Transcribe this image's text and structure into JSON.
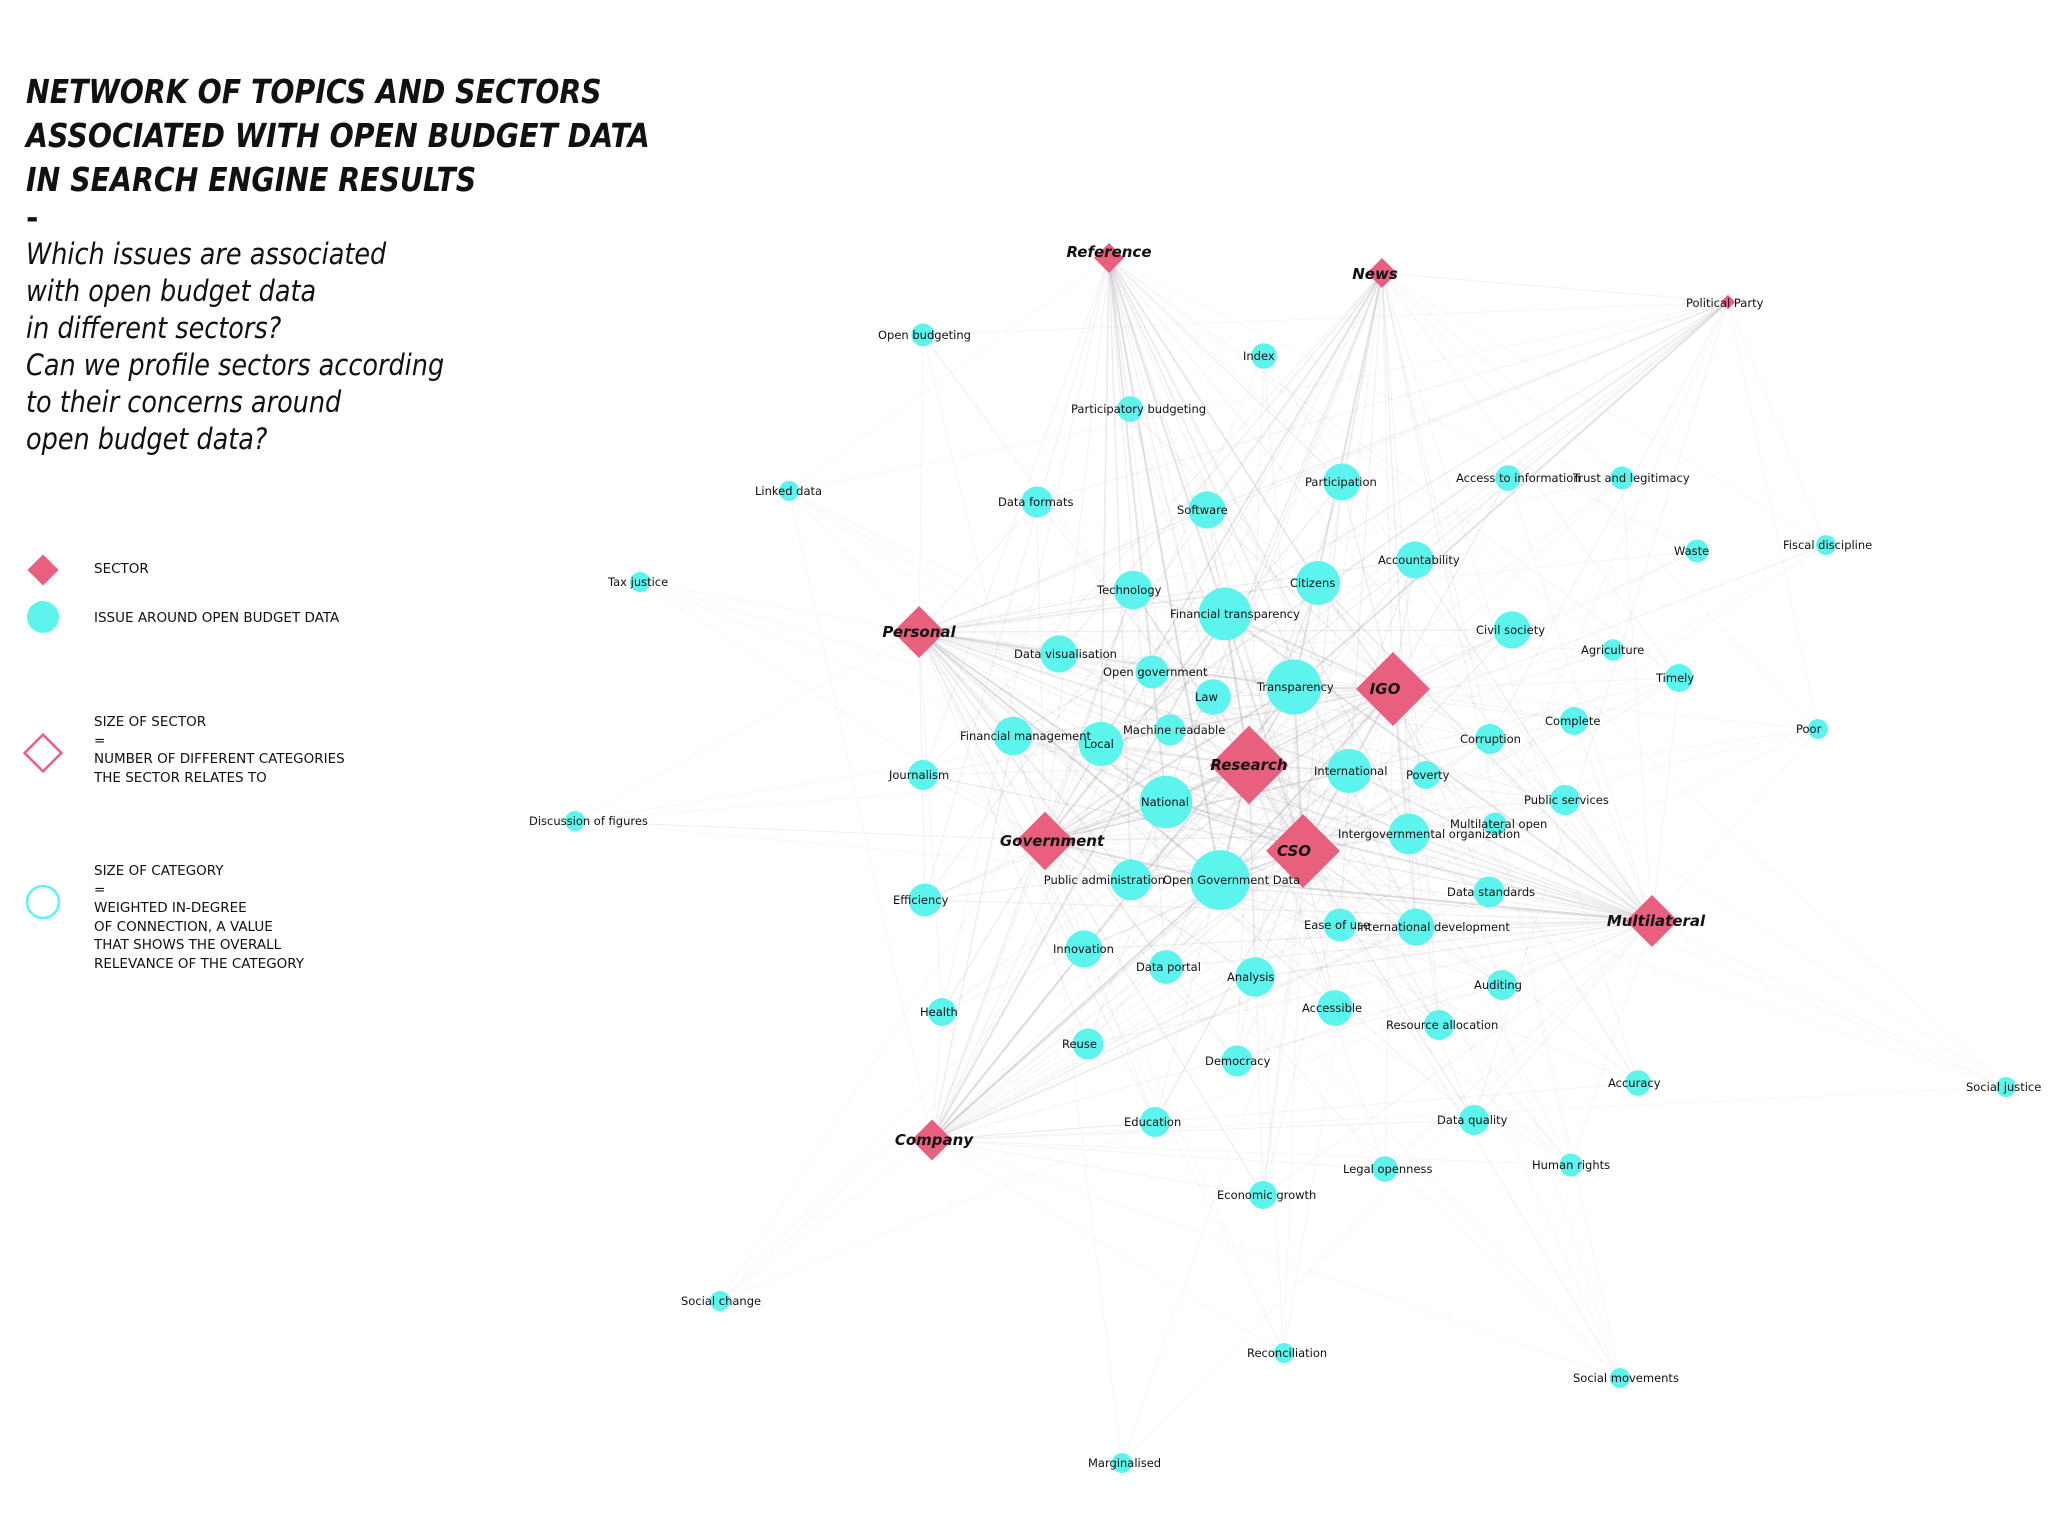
{
  "title": {
    "lines": [
      "NETWORK OF TOPICS AND SECTORS",
      "ASSOCIATED WITH OPEN BUDGET DATA",
      "IN SEARCH ENGINE RESULTS"
    ],
    "dash": "-",
    "question_lines": [
      "Which issues are associated",
      "with open budget data",
      "in different sectors?",
      "Can we profile sectors according",
      "to their concerns around",
      "open budget data?"
    ]
  },
  "legend": {
    "sector_label": "SECTOR",
    "issue_label": "ISSUE AROUND OPEN BUDGET DATA",
    "sector_size_text": "SIZE OF SECTOR\n=\nNUMBER OF DIFFERENT CATEGORIES\nTHE SECTOR RELATES TO",
    "category_size_text": "SIZE OF CATEGORY\n=\nWEIGHTED IN-DEGREE\nOF CONNECTION, A VALUE\nTHAT SHOWS THE OVERALL\nRELEVANCE OF THE CATEGORY"
  },
  "colors": {
    "sector": "#e8607e",
    "issue": "#5ef4ee",
    "edge": "#b8b0bc"
  },
  "sectors": [
    {
      "label": "Reference",
      "weight": 1
    },
    {
      "label": "News",
      "weight": 1
    },
    {
      "label": "Political Party",
      "weight": 0.3
    },
    {
      "label": "Personal",
      "weight": 2
    },
    {
      "label": "IGO",
      "weight": 3
    },
    {
      "label": "Research",
      "weight": 3.2
    },
    {
      "label": "Government",
      "weight": 2.3
    },
    {
      "label": "CSO",
      "weight": 3
    },
    {
      "label": "Multilateral",
      "weight": 2
    },
    {
      "label": "Company",
      "weight": 1.5
    }
  ],
  "issues": [
    {
      "label": "Open budgeting",
      "weight": 0.6
    },
    {
      "label": "Index",
      "weight": 0.8
    },
    {
      "label": "Participatory budgeting",
      "weight": 0.8
    },
    {
      "label": "Linked data",
      "weight": 0.4
    },
    {
      "label": "Data formats",
      "weight": 1.3
    },
    {
      "label": "Software",
      "weight": 2
    },
    {
      "label": "Participation",
      "weight": 2
    },
    {
      "label": "Access to information",
      "weight": 0.8
    },
    {
      "label": "Trust and legitimacy",
      "weight": 0.6
    },
    {
      "label": "Fiscal discipline",
      "weight": 0.4
    },
    {
      "label": "Waste",
      "weight": 0.6
    },
    {
      "label": "Tax justice",
      "weight": 0.4
    },
    {
      "label": "Accountability",
      "weight": 2
    },
    {
      "label": "Citizens",
      "weight": 3
    },
    {
      "label": "Technology",
      "weight": 2.2
    },
    {
      "label": "Financial transparency",
      "weight": 4.5
    },
    {
      "label": "Civil society",
      "weight": 2
    },
    {
      "label": "Agriculture",
      "weight": 0.5
    },
    {
      "label": "Data visualisation",
      "weight": 2
    },
    {
      "label": "Open government",
      "weight": 1.5
    },
    {
      "label": "Timely",
      "weight": 1
    },
    {
      "label": "Law",
      "weight": 1.8
    },
    {
      "label": "Transparency",
      "weight": 5
    },
    {
      "label": "Complete",
      "weight": 1
    },
    {
      "label": "Machine readable",
      "weight": 1.3
    },
    {
      "label": "Poor",
      "weight": 0.4
    },
    {
      "label": "Financial management",
      "weight": 2.2
    },
    {
      "label": "Local",
      "weight": 3
    },
    {
      "label": "Corruption",
      "weight": 1.2
    },
    {
      "label": "International",
      "weight": 3
    },
    {
      "label": "Poverty",
      "weight": 1
    },
    {
      "label": "Journalism",
      "weight": 1.2
    },
    {
      "label": "National",
      "weight": 4.5
    },
    {
      "label": "Public services",
      "weight": 1.2
    },
    {
      "label": "Discussion of figures",
      "weight": 0.4
    },
    {
      "label": "Intergovernmental organization",
      "weight": 2.5
    },
    {
      "label": "Multilateral open",
      "weight": 0.6
    },
    {
      "label": "Public administration",
      "weight": 2.5
    },
    {
      "label": "Open Government Data",
      "weight": 6
    },
    {
      "label": "Data standards",
      "weight": 1.3
    },
    {
      "label": "Efficiency",
      "weight": 1.5
    },
    {
      "label": "Ease of use",
      "weight": 1.5
    },
    {
      "label": "International development",
      "weight": 2
    },
    {
      "label": "Innovation",
      "weight": 2
    },
    {
      "label": "Data portal",
      "weight": 1.6
    },
    {
      "label": "Analysis",
      "weight": 2.3
    },
    {
      "label": "Auditing",
      "weight": 1.2
    },
    {
      "label": "Health",
      "weight": 1
    },
    {
      "label": "Accessible",
      "weight": 1.8
    },
    {
      "label": "Resource allocation",
      "weight": 1.2
    },
    {
      "label": "Reuse",
      "weight": 1.3
    },
    {
      "label": "Democracy",
      "weight": 1.3
    },
    {
      "label": "Accuracy",
      "weight": 0.8
    },
    {
      "label": "Social justice",
      "weight": 0.4
    },
    {
      "label": "Education",
      "weight": 1.2
    },
    {
      "label": "Data quality",
      "weight": 1.2
    },
    {
      "label": "Human rights",
      "weight": 0.6
    },
    {
      "label": "Legal openness",
      "weight": 0.8
    },
    {
      "label": "Economic growth",
      "weight": 1
    },
    {
      "label": "Social change",
      "weight": 0.4
    },
    {
      "label": "Reconciliation",
      "weight": 0.4
    },
    {
      "label": "Social movements",
      "weight": 0.4
    },
    {
      "label": "Marginalised",
      "weight": 0.4
    }
  ]
}
